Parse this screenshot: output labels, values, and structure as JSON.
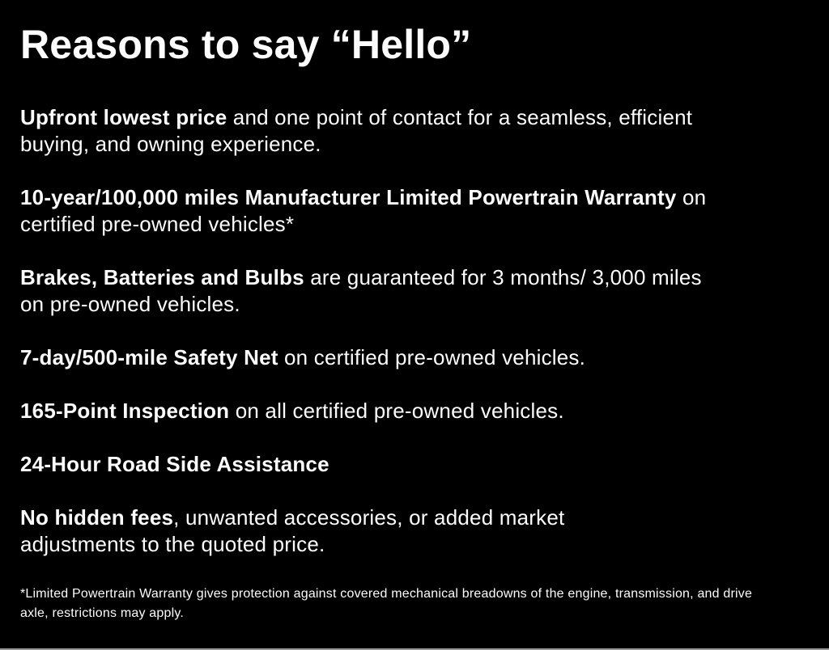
{
  "page": {
    "background_color": "#000000",
    "text_color": "#fcfcfc",
    "title": "Reasons to say “Hello”"
  },
  "reasons": [
    {
      "bold": "Upfront lowest price",
      "rest": " and one point of contact for a seamless, efficient\nbuying, and owning experience."
    },
    {
      "bold": "10-year/100,000 miles Manufacturer Limited Powertrain Warranty",
      "rest": " on\ncertified pre-owned vehicles*"
    },
    {
      "bold": "Brakes, Batteries and Bulbs",
      "rest": " are guaranteed for 3 months/ 3,000 miles\non pre-owned vehicles."
    },
    {
      "bold": "7-day/500-mile Safety Net",
      "rest": " on certified pre-owned vehicles."
    },
    {
      "bold": "165-Point Inspection",
      "rest": " on all certified pre-owned vehicles."
    },
    {
      "bold": "24-Hour Road Side Assistance",
      "rest": ""
    },
    {
      "bold": "No hidden fees",
      "rest": ", unwanted accessories, or added market\nadjustments to the quoted price."
    }
  ],
  "disclaimer": "*Limited Powertrain Warranty gives protection against covered mechanical breadowns of the engine, transmission, and drive\naxle, restrictions may apply."
}
